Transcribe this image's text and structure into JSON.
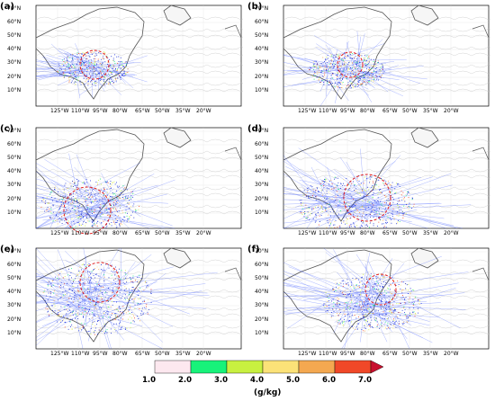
{
  "panels": [
    {
      "label": "(a)"
    },
    {
      "label": "(b)"
    },
    {
      "label": "(c)"
    },
    {
      "label": "(d)"
    },
    {
      "label": "(e)"
    },
    {
      "label": "(f)"
    }
  ],
  "lat_labels": [
    "70°N",
    "60°N",
    "50°N",
    "40°N",
    "30°N",
    "20°N",
    "10°N"
  ],
  "lon_labels": [
    "125°W",
    "110°W",
    "95°W",
    "80°W",
    "65°W",
    "50°W",
    "35°W",
    "20°W"
  ],
  "colorbar": {
    "ticks": [
      "1.0",
      "2.0",
      "3.0",
      "4.0",
      "5.0",
      "6.0",
      "7.0"
    ],
    "colors": [
      "#fde8ef",
      "#18f27a",
      "#c8f040",
      "#fbe278",
      "#f4a850",
      "#f04828",
      "#c8102e"
    ],
    "unit": "(g/kg)"
  },
  "colors": {
    "trajectory": "#2040ff",
    "circle": "#e02020",
    "contour": "#bfbfbf"
  }
}
